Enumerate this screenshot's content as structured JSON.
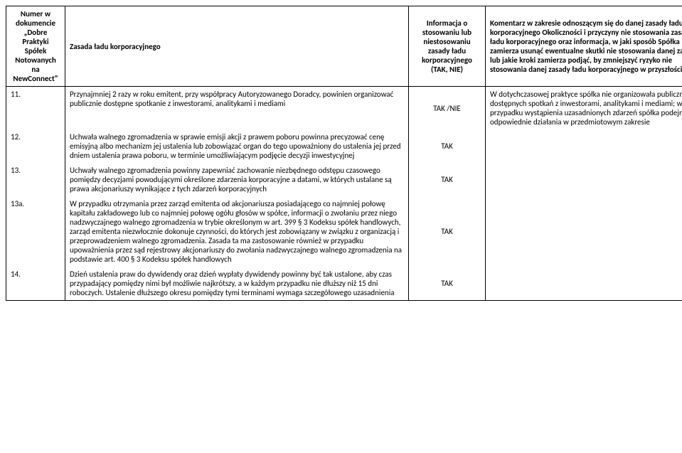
{
  "headers": {
    "num": "Numer w dokumencie „Dobre Praktyki Spółek Notowanych na NewConnect\"",
    "rule": "Zasada ładu korporacyjnego",
    "info": "Informacja o stosowaniu lub niestosowaniu zasady ładu korporacyjnego (TAK, NIE)",
    "comment": "Komentarz w zakresie odnoszącym się do danej zasady ładu korporacyjnego\nOkoliczności i przyczyny nie stosowania zasady ładu korporacyjnego oraz informacja, w jaki sposób Spółka zamierza usunąć ewentualne skutki nie stosowania danej zasady lub jakie kroki zamierza podjąć, by zmniejszyć ryzyko nie stosowania danej zasady ładu korporacyjnego w przyszłości"
  },
  "rows": [
    {
      "num": "11.",
      "rule": "Przynajmniej 2 razy w roku emitent, przy współpracy Autoryzowanego Doradcy, powinien organizować publicznie dostępne spotkanie z inwestorami, analitykami i mediami",
      "info": "TAK /NIE",
      "comment": "W dotychczasowej praktyce spółka nie organizowała publicznie dostępnych spotkań z inwestorami, analitykami i mediami; w przypadku wystąpienia uzasadnionych zdarzeń spółka podejmie odpowiednie działania w przedmiotowym zakresie"
    },
    {
      "num": "12.",
      "rule": "Uchwała walnego zgromadzenia w sprawie emisji akcji z prawem poboru powinna precyzować cenę emisyjną albo mechanizm jej ustalenia lub zobowiązać organ do tego upoważniony do ustalenia jej przed dniem ustalenia prawa poboru, w terminie umożliwiającym podjęcie decyzji inwestycyjnej",
      "info": "TAK",
      "comment": ""
    },
    {
      "num": "13.",
      "rule": "Uchwały walnego zgromadzenia powinny zapewniać zachowanie niezbędnego odstępu czasowego pomiędzy decyzjami powodującymi określone zdarzenia korporacyjne a datami, w których ustalane są prawa akcjonariuszy wynikające z tych zdarzeń korporacyjnych",
      "info": "TAK",
      "comment": ""
    },
    {
      "num": "13a.",
      "rule": "W przypadku otrzymania przez zarząd emitenta od akcjonariusza posiadającego co najmniej połowę kapitału zakładowego lub co najmniej połowę ogółu głosów w spółce, informacji o zwołaniu przez niego nadzwyczajnego walnego zgromadzenia w trybie określonym w art. 399 § 3 Kodeksu spółek handlowych, zarząd emitenta niezwłocznie dokonuje czynności, do których jest zobowiązany w związku z organizacją i przeprowadzeniem walnego zgromadzenia. Zasada ta ma zastosowanie również w przypadku upoważnienia przez sąd rejestrowy akcjonariuszy do zwołania nadzwyczajnego walnego zgromadzenia na podstawie art. 400 § 3 Kodeksu spółek handlowych",
      "info": "TAK",
      "comment": ""
    },
    {
      "num": "14.",
      "rule": "Dzień ustalenia praw do dywidendy oraz dzień wypłaty dywidendy powinny być tak ustalone, aby czas przypadający pomiędzy nimi był możliwie najkrótszy, a w każdym przypadku nie dłuższy niż 15 dni roboczych. Ustalenie dłuższego okresu pomiędzy tymi terminami wymaga szczegółowego uzasadnienia",
      "info": "TAK",
      "comment": ""
    }
  ]
}
